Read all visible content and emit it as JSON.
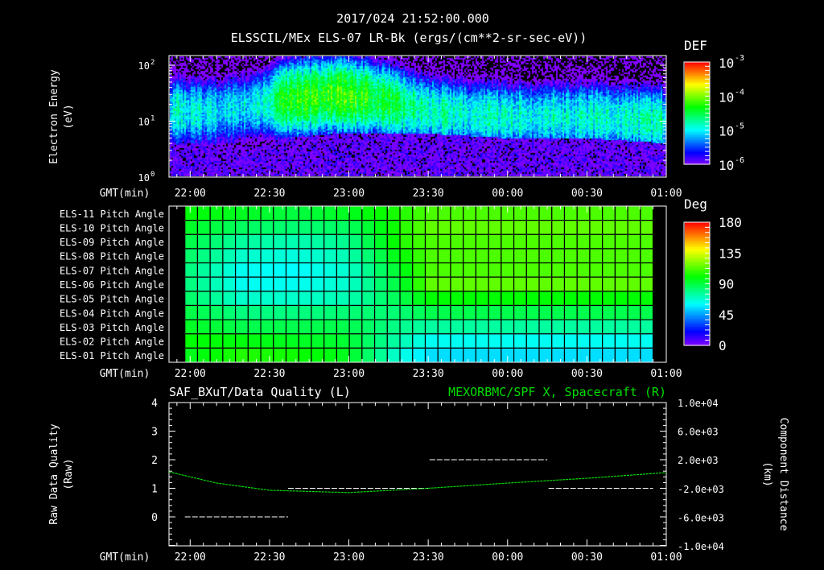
{
  "header": {
    "timestamp": "2017/024 21:52:00.000",
    "title": "ELSSCIL/MEx ELS-07 LR-Bk  (ergs/(cm**2-sr-sec-eV))"
  },
  "time_axis": {
    "label": "GMT(min)",
    "ticks": [
      "22:00",
      "22:30",
      "23:00",
      "23:30",
      "00:00",
      "00:30",
      "01:00"
    ],
    "start": "21:52",
    "end": "01:00"
  },
  "colors": {
    "background": "#000000",
    "foreground": "#ffffff",
    "right_series": "#00dd00"
  },
  "chart_data": [
    {
      "type": "heatmap",
      "name": "energy-spectrogram",
      "ylabel": "Electron Energy",
      "ylabel_units": "(eV)",
      "yscale": "log",
      "ylim": [
        1,
        150
      ],
      "yticks": [
        {
          "base": "10",
          "exp": "0"
        },
        {
          "base": "10",
          "exp": "1"
        },
        {
          "base": "10",
          "exp": "2"
        }
      ],
      "colorbar": {
        "label": "DEF",
        "scale": "log",
        "range": [
          -6,
          -3
        ],
        "ticks": [
          {
            "base": "10",
            "exp": "-3"
          },
          {
            "base": "10",
            "exp": "-4"
          },
          {
            "base": "10",
            "exp": "-5"
          },
          {
            "base": "10",
            "exp": "-6"
          }
        ]
      },
      "profile": [
        {
          "time_min": 0,
          "lo_eV": 4,
          "peak_eV": 15,
          "peak_logdef": -4.9
        },
        {
          "time_min": 18,
          "lo_eV": 3.5,
          "peak_eV": 15,
          "peak_logdef": -5.0
        },
        {
          "time_min": 33,
          "lo_eV": 3.5,
          "peak_eV": 20,
          "peak_logdef": -5.0
        },
        {
          "time_min": 43,
          "lo_eV": 5,
          "peak_eV": 25,
          "peak_logdef": -4.4
        },
        {
          "time_min": 63,
          "lo_eV": 6,
          "peak_eV": 30,
          "peak_logdef": -4.2
        },
        {
          "time_min": 78,
          "lo_eV": 6,
          "peak_eV": 25,
          "peak_logdef": -4.4
        },
        {
          "time_min": 98,
          "lo_eV": 6,
          "peak_eV": 15,
          "peak_logdef": -4.8
        },
        {
          "time_min": 128,
          "lo_eV": 5,
          "peak_eV": 12,
          "peak_logdef": -4.9
        },
        {
          "time_min": 158,
          "lo_eV": 5,
          "peak_eV": 12,
          "peak_logdef": -4.9
        },
        {
          "time_min": 188,
          "lo_eV": 4,
          "peak_eV": 10,
          "peak_logdef": -4.8
        }
      ]
    },
    {
      "type": "heatmap",
      "name": "pitch-angle",
      "rows": [
        "ELS-11 Pitch Angle",
        "ELS-10 Pitch Angle",
        "ELS-09 Pitch Angle",
        "ELS-08 Pitch Angle",
        "ELS-07 Pitch Angle",
        "ELS-06 Pitch Angle",
        "ELS-05 Pitch Angle",
        "ELS-04 Pitch Angle",
        "ELS-03 Pitch Angle",
        "ELS-02 Pitch Angle",
        "ELS-01 Pitch Angle"
      ],
      "colorbar": {
        "label": "Deg",
        "range": [
          0,
          180
        ],
        "ticks": [
          "180",
          "135",
          "90",
          "45",
          "0"
        ]
      },
      "data_start_min": 6,
      "data_end_min": 183,
      "n_columns": 37,
      "key_times_min": [
        6,
        28,
        48,
        68,
        88,
        98,
        183
      ],
      "values": [
        [
          100,
          95,
          90,
          95,
          105,
          112,
          112
        ],
        [
          95,
          85,
          82,
          85,
          105,
          115,
          115
        ],
        [
          90,
          75,
          72,
          78,
          105,
          112,
          112
        ],
        [
          85,
          68,
          65,
          72,
          100,
          112,
          112
        ],
        [
          82,
          62,
          60,
          68,
          95,
          112,
          112
        ],
        [
          82,
          62,
          62,
          68,
          92,
          115,
          115
        ],
        [
          85,
          68,
          68,
          72,
          88,
          100,
          100
        ],
        [
          90,
          80,
          80,
          82,
          82,
          88,
          88
        ],
        [
          95,
          88,
          88,
          88,
          78,
          75,
          75
        ],
        [
          100,
          98,
          95,
          92,
          72,
          62,
          62
        ],
        [
          95,
          105,
          102,
          95,
          65,
          55,
          55
        ]
      ]
    },
    {
      "type": "line",
      "name": "quality-and-position",
      "left_title": "SAF_BXuT/Data Quality (L)",
      "right_title": "MEXORBMC/SPF X, Spacecraft (R)",
      "left_ylabel": "Raw Data Quality",
      "left_yunits": "(Raw)",
      "left_ylim": [
        -1,
        4
      ],
      "left_ticks": [
        "4",
        "3",
        "2",
        "1",
        "0"
      ],
      "right_ylabel": "Component Distance",
      "right_yunits": "(km)",
      "right_ylim": [
        -10000,
        10000
      ],
      "right_ticks": [
        "1.0e+04",
        "6.0e+03",
        "2.0e+03",
        "-2.0e+03",
        "-6.0e+03",
        "-1.0e+04"
      ],
      "quality_segments": [
        {
          "start_min": 6,
          "end_min": 45,
          "value": 0
        },
        {
          "start_min": 45,
          "end_min": 98.5,
          "value": 1
        },
        {
          "start_min": 98.5,
          "end_min": 143,
          "value": 2
        },
        {
          "start_min": 143.5,
          "end_min": 183,
          "value": 1
        }
      ],
      "x_series": {
        "time_min": [
          0,
          18,
          38,
          68,
          98,
          128,
          158,
          188
        ],
        "km": [
          300,
          -1270,
          -2280,
          -2600,
          -2000,
          -1270,
          -600,
          200
        ]
      }
    }
  ]
}
